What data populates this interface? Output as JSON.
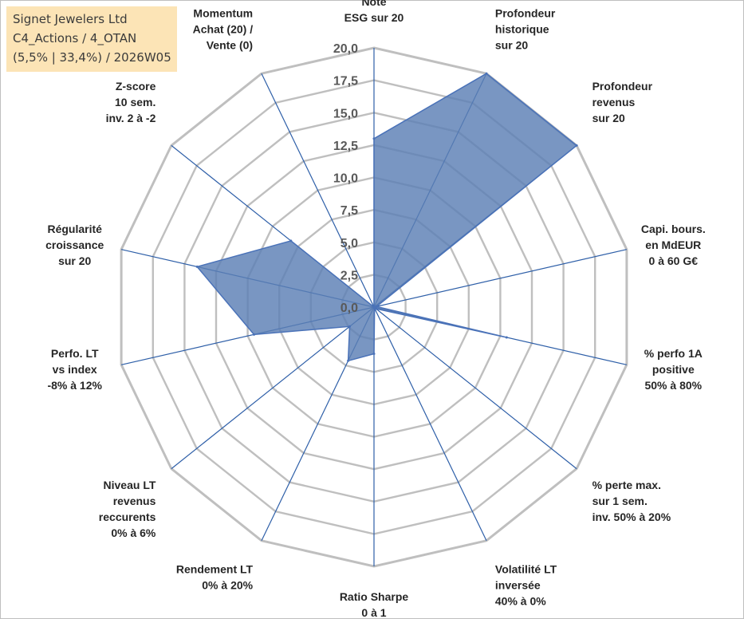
{
  "info_box": {
    "line1": "Signet Jewelers Ltd",
    "line2": "C4_Actions / 4_OTAN",
    "line3": "(5,5% | 33,4%) / 2026W05"
  },
  "colors": {
    "grid": "#bfbfbf",
    "spoke": "#2e5fa8",
    "fill": "#5b7fb5",
    "fill_stroke": "#4a72b8",
    "info_bg": "#fce4b6"
  },
  "chart_data": {
    "type": "radar",
    "rmin": 0,
    "rmax": 20,
    "tick_step": 2.5,
    "tick_labels": [
      "0,0",
      "2,5",
      "5,0",
      "7,5",
      "10,0",
      "12,5",
      "15,0",
      "17,5",
      "20,0"
    ],
    "categories": [
      [
        "Note",
        "ESG sur 20"
      ],
      [
        "Profondeur",
        "historique",
        "sur 20"
      ],
      [
        "Profondeur",
        "revenus",
        "sur 20"
      ],
      [
        "Capi. bours.",
        "en MdEUR",
        "0 à 60 G€"
      ],
      [
        "% perfo 1A",
        "positive",
        "50% à 80%"
      ],
      [
        "% perte max.",
        "sur 1 sem.",
        "inv. 50% à 20%"
      ],
      [
        "Volatilité LT",
        "inversée",
        "40% à 0%"
      ],
      [
        "Ratio Sharpe",
        "0 à 1"
      ],
      [
        "Rendement LT",
        "0% à 20%"
      ],
      [
        "Niveau LT",
        "revenus",
        "reccurents",
        "0% à 6%"
      ],
      [
        "Perfo. LT",
        "vs index",
        "-8% à 12%"
      ],
      [
        "Régularité",
        "croissance",
        "sur 20"
      ],
      [
        "Z-score",
        "10 sem.",
        "inv. 2 à -2"
      ],
      [
        "Momentum",
        "Achat (20) /",
        "Vente (0)"
      ]
    ],
    "series": [
      {
        "name": "Signet Jewelers Ltd",
        "values": [
          13.0,
          20.0,
          20.0,
          0.2,
          10.5,
          0.2,
          0.1,
          3.6,
          4.6,
          2.4,
          9.5,
          14.0,
          8.2,
          0.0
        ]
      }
    ]
  }
}
